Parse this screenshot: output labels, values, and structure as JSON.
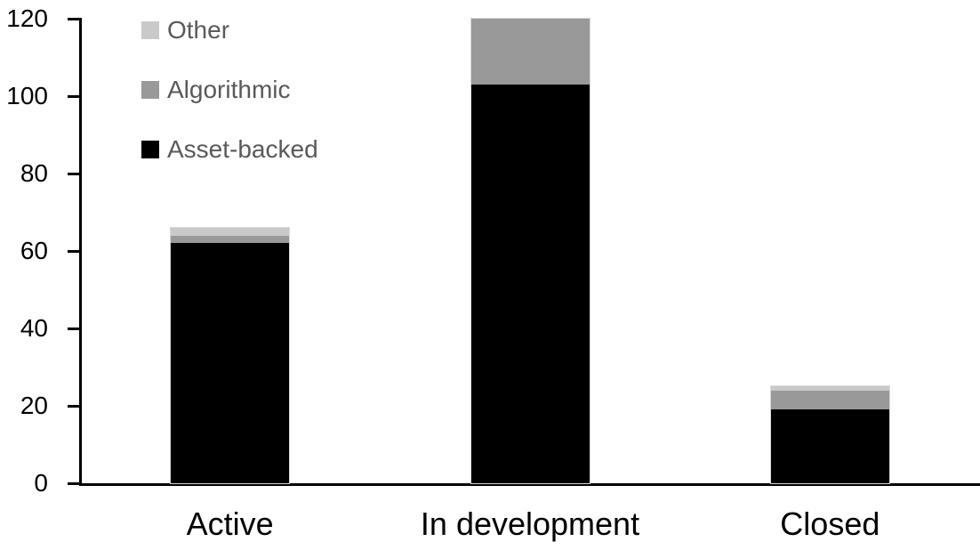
{
  "chart_data": {
    "type": "bar",
    "stacked": true,
    "title": "",
    "xlabel": "",
    "ylabel": "",
    "categories": [
      "Active",
      "In development",
      "Closed"
    ],
    "series": [
      {
        "name": "Asset-backed",
        "color": "#000000",
        "values": [
          62,
          103,
          19
        ]
      },
      {
        "name": "Algorithmic",
        "color": "#999999",
        "values": [
          2,
          17,
          5
        ]
      },
      {
        "name": "Other",
        "color": "#c9c9c9",
        "values": [
          2,
          0,
          1
        ]
      }
    ],
    "totals": [
      66,
      120,
      25
    ],
    "ylim": [
      0,
      120
    ],
    "yticks": [
      0,
      20,
      40,
      60,
      80,
      100,
      120
    ],
    "grid": false,
    "axis_color": "#000000",
    "bar_outline_color": "#d9d9d9",
    "legend": {
      "position": "top-left",
      "text_color": "#595959",
      "items": [
        {
          "label": "Other",
          "color": "#c9c9c9"
        },
        {
          "label": "Algorithmic",
          "color": "#999999"
        },
        {
          "label": "Asset-backed",
          "color": "#000000"
        }
      ]
    }
  }
}
